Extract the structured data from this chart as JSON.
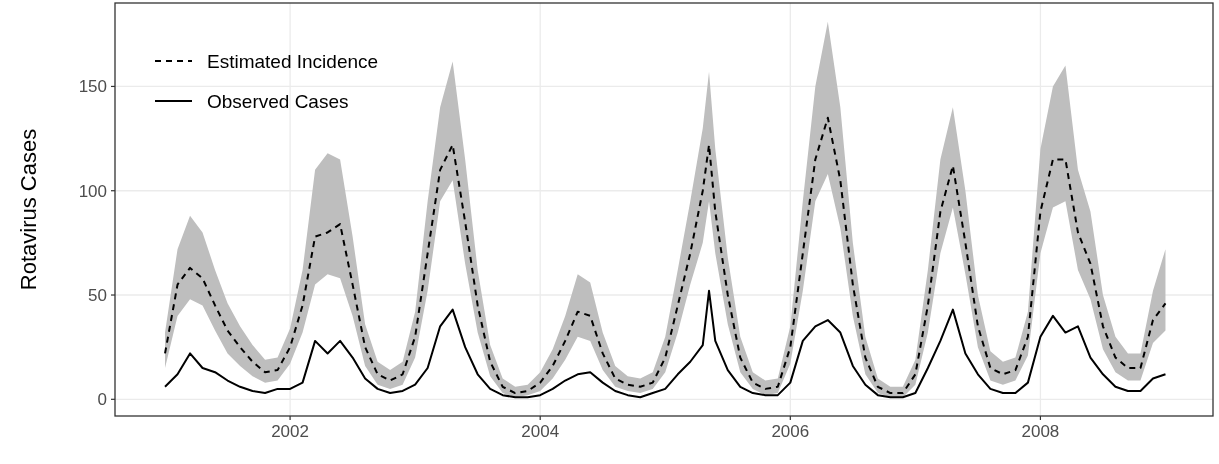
{
  "chart_data": {
    "type": "line",
    "ylabel": "Rotavirus Cases",
    "x": [
      2001.0,
      2001.1,
      2001.2,
      2001.3,
      2001.4,
      2001.5,
      2001.6,
      2001.7,
      2001.8,
      2001.9,
      2002.0,
      2002.1,
      2002.2,
      2002.3,
      2002.4,
      2002.5,
      2002.6,
      2002.7,
      2002.8,
      2002.9,
      2003.0,
      2003.1,
      2003.2,
      2003.3,
      2003.4,
      2003.5,
      2003.6,
      2003.7,
      2003.8,
      2003.9,
      2004.0,
      2004.1,
      2004.2,
      2004.3,
      2004.4,
      2004.5,
      2004.6,
      2004.7,
      2004.8,
      2004.9,
      2005.0,
      2005.1,
      2005.2,
      2005.3,
      2005.35,
      2005.4,
      2005.5,
      2005.6,
      2005.7,
      2005.8,
      2005.9,
      2006.0,
      2006.1,
      2006.2,
      2006.3,
      2006.4,
      2006.5,
      2006.6,
      2006.7,
      2006.8,
      2006.9,
      2007.0,
      2007.1,
      2007.2,
      2007.3,
      2007.4,
      2007.5,
      2007.6,
      2007.7,
      2007.8,
      2007.9,
      2008.0,
      2008.1,
      2008.2,
      2008.3,
      2008.4,
      2008.5,
      2008.6,
      2008.7,
      2008.8,
      2008.9,
      2009.0
    ],
    "series": [
      {
        "name": "Estimated Incidence",
        "color": "#000000",
        "line_style": "dashed",
        "values": [
          22,
          55,
          63,
          58,
          45,
          33,
          25,
          18,
          13,
          14,
          25,
          45,
          78,
          80,
          84,
          55,
          25,
          12,
          9,
          12,
          30,
          70,
          110,
          122,
          85,
          45,
          18,
          6,
          3,
          4,
          8,
          16,
          28,
          42,
          40,
          22,
          10,
          7,
          6,
          8,
          20,
          45,
          70,
          100,
          122,
          90,
          50,
          20,
          8,
          5,
          6,
          25,
          70,
          115,
          135,
          105,
          55,
          20,
          6,
          3,
          3,
          12,
          45,
          90,
          112,
          75,
          35,
          15,
          12,
          14,
          30,
          90,
          115,
          115,
          80,
          65,
          35,
          20,
          15,
          15,
          38,
          46
        ],
        "lower": [
          15,
          40,
          48,
          45,
          33,
          22,
          16,
          11,
          8,
          9,
          17,
          32,
          55,
          60,
          58,
          40,
          16,
          7,
          5,
          7,
          20,
          52,
          95,
          105,
          65,
          32,
          11,
          3,
          1,
          2,
          4,
          10,
          19,
          30,
          28,
          14,
          6,
          4,
          3,
          5,
          13,
          32,
          55,
          75,
          95,
          70,
          36,
          13,
          5,
          2,
          3,
          17,
          52,
          95,
          108,
          82,
          40,
          12,
          3,
          1,
          1,
          7,
          32,
          70,
          92,
          60,
          25,
          9,
          7,
          9,
          21,
          70,
          92,
          95,
          62,
          48,
          24,
          13,
          9,
          9,
          27,
          33
        ],
        "upper": [
          32,
          72,
          88,
          80,
          62,
          46,
          35,
          26,
          19,
          20,
          34,
          62,
          110,
          118,
          115,
          78,
          36,
          18,
          14,
          18,
          42,
          95,
          140,
          162,
          115,
          62,
          26,
          10,
          6,
          7,
          13,
          24,
          40,
          60,
          56,
          32,
          16,
          11,
          10,
          13,
          30,
          62,
          95,
          130,
          157,
          120,
          68,
          30,
          13,
          9,
          10,
          35,
          95,
          150,
          181,
          140,
          75,
          30,
          10,
          6,
          6,
          19,
          62,
          115,
          140,
          100,
          50,
          23,
          18,
          20,
          42,
          120,
          150,
          160,
          110,
          90,
          50,
          30,
          22,
          22,
          52,
          72
        ]
      },
      {
        "name": "Observed Cases",
        "color": "#000000",
        "line_style": "solid",
        "values": [
          6,
          12,
          22,
          15,
          13,
          9,
          6,
          4,
          3,
          5,
          5,
          8,
          28,
          22,
          28,
          20,
          10,
          5,
          3,
          4,
          7,
          15,
          35,
          43,
          25,
          12,
          5,
          2,
          1,
          1,
          2,
          5,
          9,
          12,
          13,
          8,
          4,
          2,
          1,
          3,
          5,
          12,
          18,
          26,
          52,
          28,
          14,
          6,
          3,
          2,
          2,
          8,
          28,
          35,
          38,
          32,
          16,
          7,
          2,
          1,
          1,
          3,
          15,
          28,
          43,
          22,
          12,
          5,
          3,
          3,
          8,
          30,
          40,
          32,
          35,
          20,
          12,
          6,
          4,
          4,
          10,
          12
        ]
      }
    ],
    "xlim": [
      2000.6,
      2009.38
    ],
    "xticks": [
      2002,
      2004,
      2006,
      2008
    ],
    "ylim": [
      -8,
      190
    ],
    "yticks": [
      0,
      50,
      100,
      150
    ],
    "grid": true,
    "legend": "top left"
  }
}
